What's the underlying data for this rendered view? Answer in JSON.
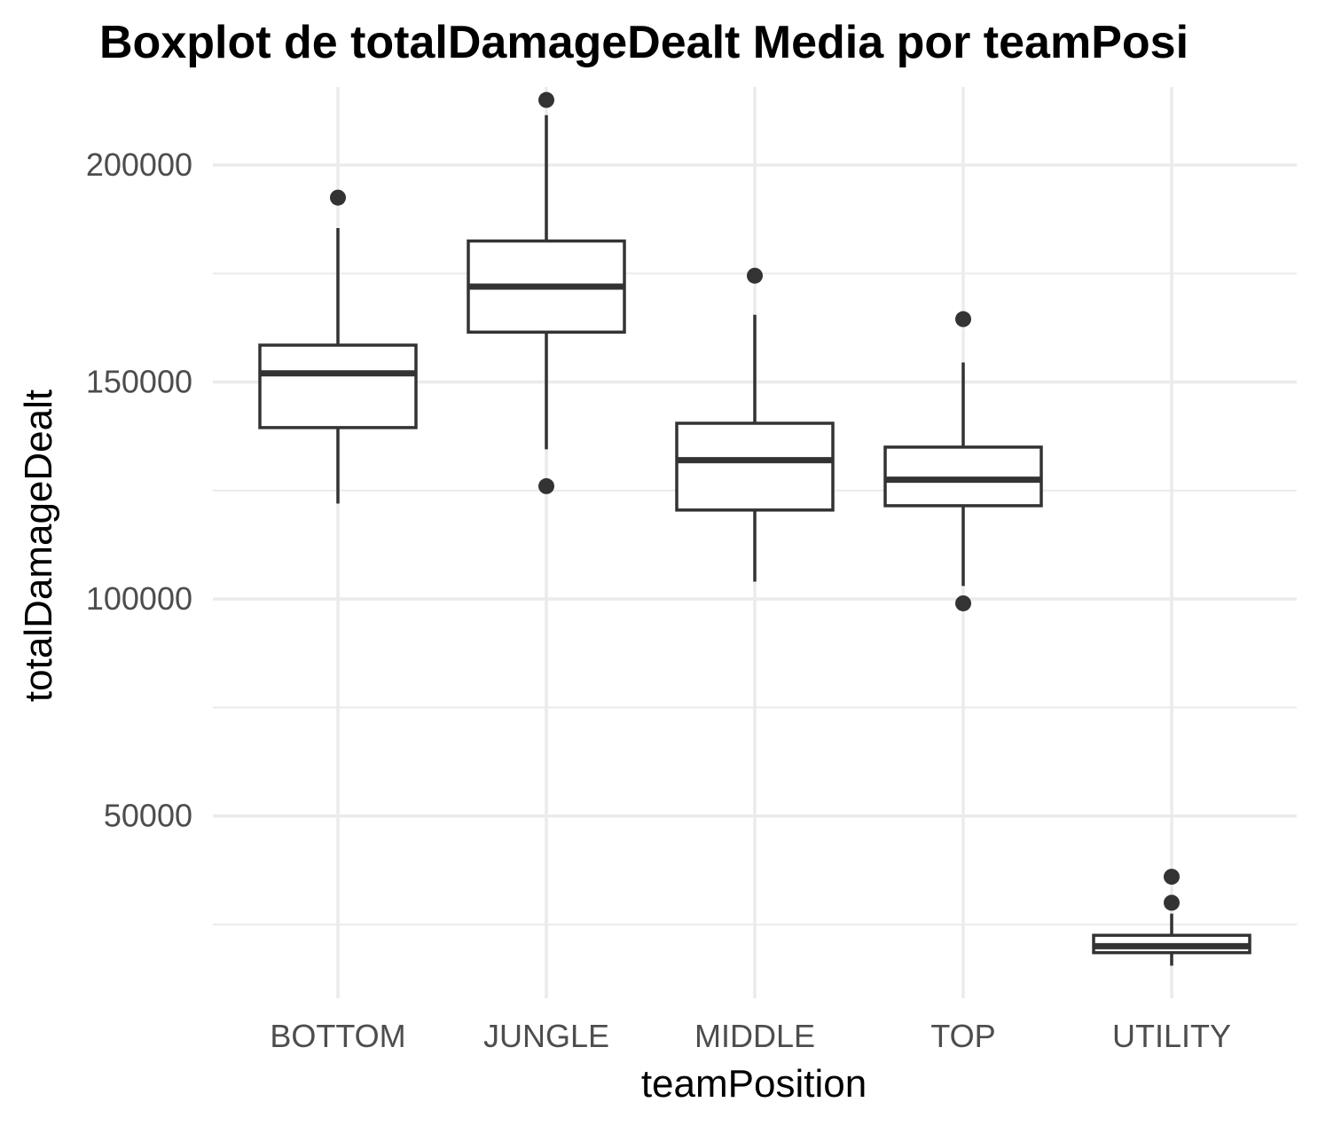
{
  "chart_data": {
    "type": "boxplot",
    "title": "Boxplot de totalDamageDealt Media por teamPosi",
    "xlabel": "teamPosition",
    "ylabel": "totalDamageDealt",
    "ylim": [
      8000,
      218000
    ],
    "yticks": [
      50000,
      100000,
      150000,
      200000
    ],
    "y_tick_labels": [
      "50000",
      "100000",
      "150000",
      "200000"
    ],
    "grid": true,
    "legend": "none",
    "box_color": "#333333",
    "grid_color": "#ebebeb",
    "categories": [
      "BOTTOM",
      "JUNGLE",
      "MIDDLE",
      "TOP",
      "UTILITY"
    ],
    "boxes": [
      {
        "category": "BOTTOM",
        "whisker_low": 122000,
        "q1": 139500,
        "median": 152000,
        "q3": 158500,
        "whisker_high": 185500,
        "outliers": [
          192500
        ]
      },
      {
        "category": "JUNGLE",
        "whisker_low": 134500,
        "q1": 161500,
        "median": 172000,
        "q3": 182500,
        "whisker_high": 211500,
        "outliers": [
          215000,
          126000
        ]
      },
      {
        "category": "MIDDLE",
        "whisker_low": 104000,
        "q1": 120500,
        "median": 132000,
        "q3": 140500,
        "whisker_high": 165500,
        "outliers": [
          174500
        ]
      },
      {
        "category": "TOP",
        "whisker_low": 103000,
        "q1": 121500,
        "median": 127500,
        "q3": 135000,
        "whisker_high": 154500,
        "outliers": [
          164500,
          99000
        ]
      },
      {
        "category": "UTILITY",
        "whisker_low": 15500,
        "q1": 18500,
        "median": 20000,
        "q3": 22500,
        "whisker_high": 27500,
        "outliers": [
          36000,
          30000
        ]
      }
    ]
  }
}
